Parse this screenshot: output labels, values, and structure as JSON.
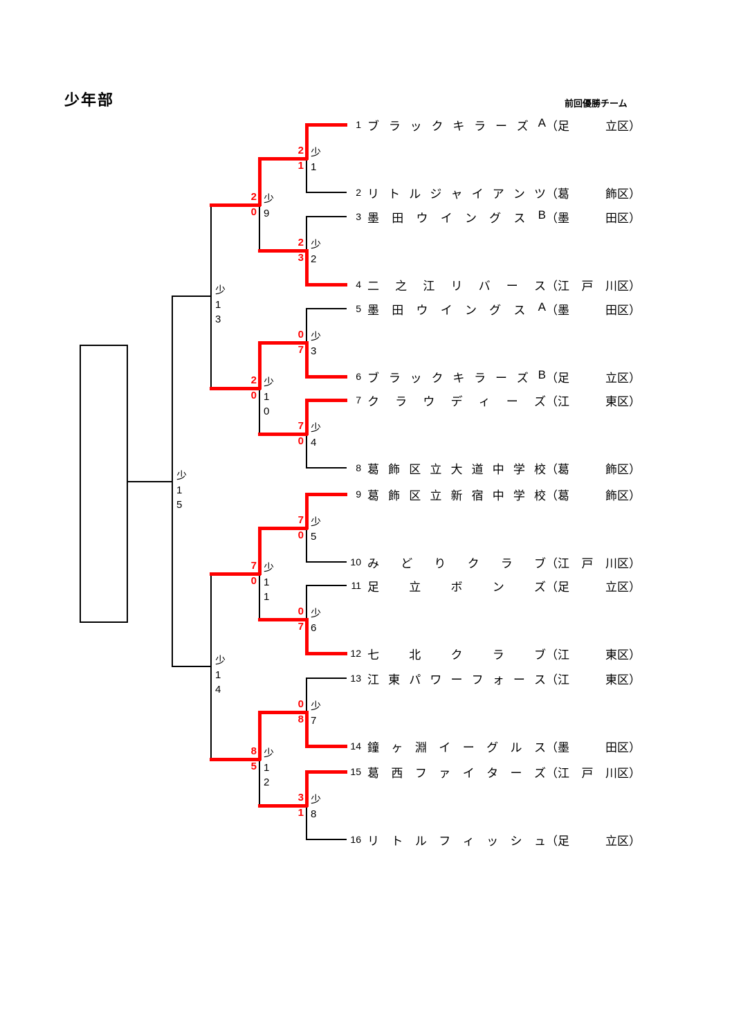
{
  "title": "少年部",
  "note": "前回優勝チーム",
  "colors": {
    "winner_path": "#ff0000",
    "line": "#000000",
    "score_text": "#ff0000"
  },
  "district_format": {
    "open": "（",
    "suffix": "区）"
  },
  "champion_box": {
    "value": ""
  },
  "teams": [
    {
      "num": "1",
      "name": "ブラックキラーズA",
      "district": "足立"
    },
    {
      "num": "2",
      "name": "リトルジャイアンツ",
      "district": "葛飾"
    },
    {
      "num": "3",
      "name": "墨田ウイングスB",
      "district": "墨田"
    },
    {
      "num": "4",
      "name": "二之江リバース",
      "district": "江戸川"
    },
    {
      "num": "5",
      "name": "墨田ウイングスA",
      "district": "墨田"
    },
    {
      "num": "6",
      "name": "ブラックキラーズB",
      "district": "足立"
    },
    {
      "num": "7",
      "name": "クラウディーズ",
      "district": "江東"
    },
    {
      "num": "8",
      "name": "葛飾区立大道中学校",
      "district": "葛飾"
    },
    {
      "num": "9",
      "name": "葛飾区立新宿中学校",
      "district": "葛飾"
    },
    {
      "num": "10",
      "name": "みどりクラブ",
      "district": "江戸川"
    },
    {
      "num": "11",
      "name": "足立ボンズ",
      "district": "足立"
    },
    {
      "num": "12",
      "name": "七北クラブ",
      "district": "江東"
    },
    {
      "num": "13",
      "name": "江東パワーフォース",
      "district": "江東"
    },
    {
      "num": "14",
      "name": "鐘ヶ淵イーグルス",
      "district": "墨田"
    },
    {
      "num": "15",
      "name": "葛西ファイターズ",
      "district": "江戸川"
    },
    {
      "num": "16",
      "name": "リトルフィッシュ",
      "district": "足立"
    }
  ],
  "rounds": {
    "round1": [
      {
        "label": "少1",
        "scores": [
          "2",
          "1"
        ],
        "winner": "top"
      },
      {
        "label": "少2",
        "scores": [
          "2",
          "3"
        ],
        "winner": "bottom"
      },
      {
        "label": "少3",
        "scores": [
          "0",
          "7"
        ],
        "winner": "bottom"
      },
      {
        "label": "少4",
        "scores": [
          "7",
          "0"
        ],
        "winner": "top"
      },
      {
        "label": "少5",
        "scores": [
          "7",
          "0"
        ],
        "winner": "top"
      },
      {
        "label": "少6",
        "scores": [
          "0",
          "7"
        ],
        "winner": "bottom"
      },
      {
        "label": "少7",
        "scores": [
          "0",
          "8"
        ],
        "winner": "bottom"
      },
      {
        "label": "少8",
        "scores": [
          "3",
          "1"
        ],
        "winner": "top"
      }
    ],
    "quarterfinals": [
      {
        "label": "少9",
        "scores": [
          "2",
          "0"
        ],
        "winner": "top"
      },
      {
        "label": "少10",
        "scores": [
          "2",
          "0"
        ],
        "winner": "top"
      },
      {
        "label": "少11",
        "scores": [
          "7",
          "0"
        ],
        "winner": "top"
      },
      {
        "label": "少12",
        "scores": [
          "8",
          "5"
        ],
        "winner": "top"
      }
    ],
    "semifinals": [
      {
        "label": "少13",
        "scores": null,
        "winner": null
      },
      {
        "label": "少14",
        "scores": null,
        "winner": null
      }
    ],
    "final": [
      {
        "label": "少15",
        "scores": null,
        "winner": null
      }
    ]
  }
}
